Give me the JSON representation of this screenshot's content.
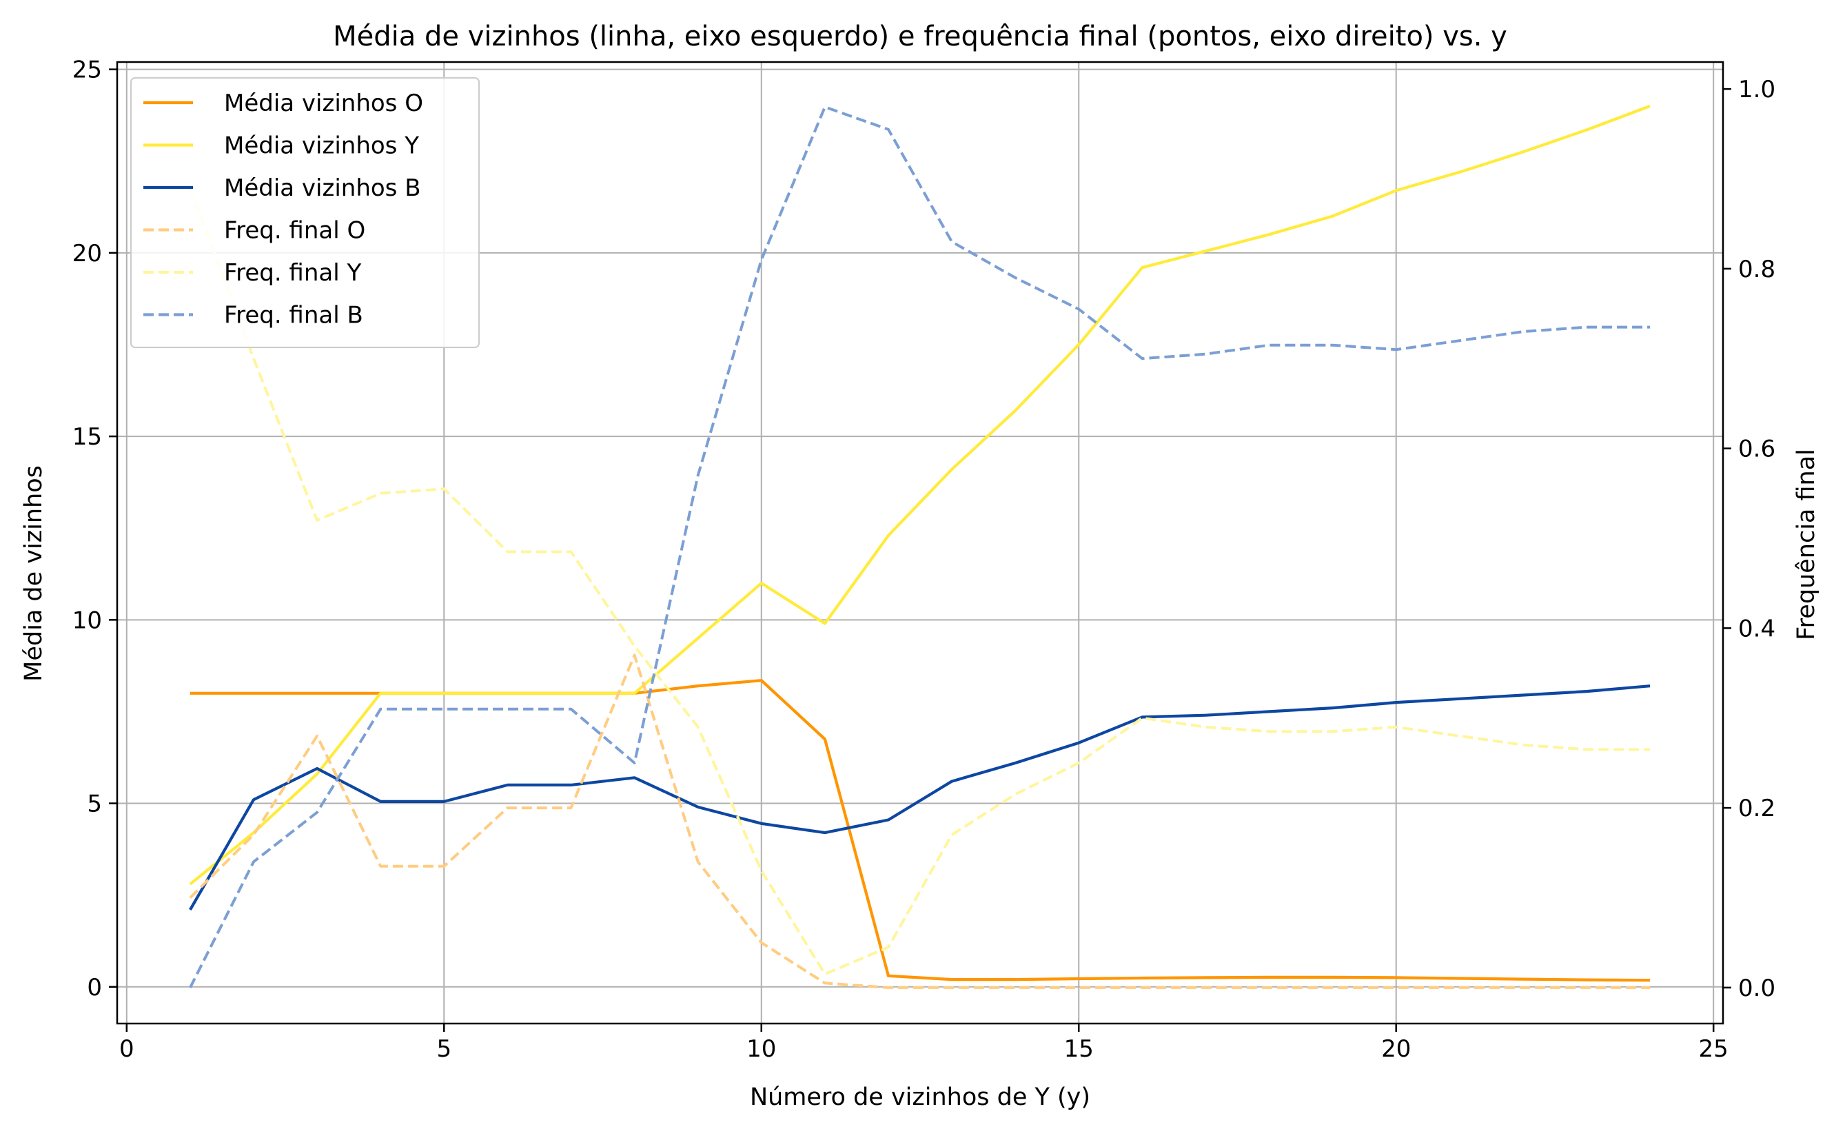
{
  "chart_data": {
    "type": "line",
    "title": "Média de vizinhos (linha, eixo esquerdo) e frequência final (pontos, eixo direito) vs. y",
    "xlabel": "Número de vizinhos de Y (y)",
    "ylabel": "Média de vizinhos",
    "ylabel_right": "Frequência final",
    "xlim": [
      -0.15,
      25.15
    ],
    "ylim": [
      -1.0,
      25.2
    ],
    "ylim_right": [
      -0.04,
      1.03
    ],
    "xticks": [
      0,
      5,
      10,
      15,
      20,
      25
    ],
    "yticks": [
      0,
      5,
      10,
      15,
      20,
      25
    ],
    "yticks_right": [
      0.0,
      0.2,
      0.4,
      0.6,
      0.8,
      1.0
    ],
    "ytick_labels_right": [
      "0.0",
      "0.2",
      "0.4",
      "0.6",
      "0.8",
      "1.0"
    ],
    "grid": true,
    "legend_position": "upper-left",
    "x": [
      1,
      2,
      3,
      4,
      5,
      6,
      7,
      8,
      9,
      10,
      11,
      12,
      13,
      14,
      15,
      16,
      17,
      18,
      19,
      20,
      21,
      22,
      23,
      24
    ],
    "series": [
      {
        "name": "Média vizinhos O",
        "axis": "left",
        "style": "solid",
        "color": "#ff9500",
        "values": [
          8.0,
          8.0,
          8.0,
          8.0,
          8.0,
          8.0,
          8.0,
          8.0,
          8.2,
          8.35,
          6.75,
          0.3,
          0.2,
          0.2,
          0.22,
          0.24,
          0.25,
          0.26,
          0.26,
          0.25,
          0.23,
          0.21,
          0.19,
          0.18
        ]
      },
      {
        "name": "Média vizinhos Y",
        "axis": "left",
        "style": "solid",
        "color": "#ffeb3b",
        "values": [
          2.8,
          4.2,
          5.8,
          8.0,
          8.0,
          8.0,
          8.0,
          8.0,
          9.5,
          11.0,
          9.9,
          12.3,
          14.1,
          15.7,
          17.5,
          19.6,
          20.05,
          20.5,
          21.0,
          21.7,
          22.2,
          22.75,
          23.35,
          24.0
        ]
      },
      {
        "name": "Média vizinhos B",
        "axis": "left",
        "style": "solid",
        "color": "#0d47a1",
        "values": [
          2.1,
          5.1,
          5.95,
          5.05,
          5.05,
          5.5,
          5.5,
          5.7,
          4.9,
          4.45,
          4.2,
          4.55,
          5.6,
          6.1,
          6.65,
          7.35,
          7.4,
          7.5,
          7.6,
          7.75,
          7.85,
          7.95,
          8.05,
          8.2
        ]
      },
      {
        "name": "Freq. final O",
        "axis": "right",
        "style": "dashed",
        "color": "#ffcc80",
        "values": [
          0.1,
          0.17,
          0.28,
          0.135,
          0.135,
          0.2,
          0.2,
          0.37,
          0.14,
          0.05,
          0.005,
          0.0,
          0.0,
          0.0,
          0.0,
          0.0,
          0.0,
          0.0,
          0.0,
          0.0,
          0.0,
          0.0,
          0.0,
          0.0
        ]
      },
      {
        "name": "Freq. final Y",
        "axis": "right",
        "style": "dashed",
        "color": "#fff59d",
        "values": [
          0.89,
          0.7,
          0.52,
          0.55,
          0.555,
          0.485,
          0.485,
          0.38,
          0.29,
          0.13,
          0.015,
          0.045,
          0.17,
          0.215,
          0.25,
          0.3,
          0.29,
          0.285,
          0.285,
          0.29,
          0.28,
          0.27,
          0.265,
          0.265
        ]
      },
      {
        "name": "Freq. final B",
        "axis": "right",
        "style": "dashed",
        "color": "#7b9fd4",
        "values": [
          0.0,
          0.14,
          0.195,
          0.31,
          0.31,
          0.31,
          0.31,
          0.25,
          0.57,
          0.81,
          0.98,
          0.955,
          0.83,
          0.79,
          0.755,
          0.7,
          0.705,
          0.715,
          0.715,
          0.71,
          0.72,
          0.73,
          0.735,
          0.735
        ]
      }
    ]
  }
}
